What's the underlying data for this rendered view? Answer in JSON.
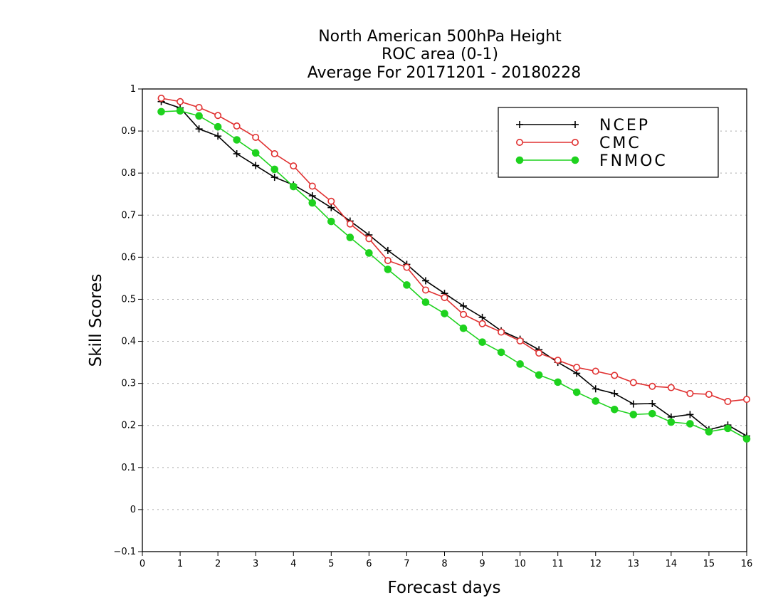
{
  "chart_data": {
    "type": "line",
    "title": [
      "North American 500hPa Height",
      "ROC area (0-1)",
      "Average For 20171201 - 20180228"
    ],
    "xlabel": "Forecast days",
    "ylabel": "Skill Scores",
    "xlim": [
      0,
      16
    ],
    "ylim": [
      -0.1,
      1
    ],
    "xticks": [
      "0",
      "1",
      "2",
      "3",
      "4",
      "5",
      "6",
      "7",
      "8",
      "9",
      "10",
      "11",
      "12",
      "13",
      "14",
      "15",
      "16"
    ],
    "yticks": [
      "−0.1",
      "0",
      "0.1",
      "0.2",
      "0.3",
      "0.4",
      "0.5",
      "0.6",
      "0.7",
      "0.8",
      "0.9",
      "1"
    ],
    "grid": "horizontal dotted",
    "legend_position": "top-right",
    "x": [
      0.5,
      1,
      1.5,
      2,
      2.5,
      3,
      3.5,
      4,
      4.5,
      5,
      5.5,
      6,
      6.5,
      7,
      7.5,
      8,
      8.5,
      9,
      9.5,
      10,
      10.5,
      11,
      11.5,
      12,
      12.5,
      13,
      13.5,
      14,
      14.5,
      15,
      15.5,
      16
    ],
    "series": [
      {
        "name": "NCEP",
        "color": "#000000",
        "marker": "plus",
        "values": [
          0.97,
          0.955,
          0.905,
          0.888,
          0.846,
          0.818,
          0.79,
          0.772,
          0.746,
          0.718,
          0.686,
          0.653,
          0.616,
          0.583,
          0.544,
          0.514,
          0.484,
          0.457,
          0.425,
          0.405,
          0.38,
          0.35,
          0.324,
          0.287,
          0.276,
          0.251,
          0.252,
          0.22,
          0.226,
          0.19,
          0.201,
          0.175
        ]
      },
      {
        "name": "CMC",
        "color": "#e03030",
        "marker": "open-circle",
        "values": [
          0.978,
          0.97,
          0.956,
          0.937,
          0.912,
          0.885,
          0.846,
          0.817,
          0.769,
          0.733,
          0.679,
          0.644,
          0.592,
          0.576,
          0.522,
          0.504,
          0.464,
          0.442,
          0.422,
          0.401,
          0.372,
          0.355,
          0.338,
          0.329,
          0.319,
          0.302,
          0.293,
          0.29,
          0.276,
          0.274,
          0.257,
          0.262
        ]
      },
      {
        "name": "FNMOC",
        "color": "#1ed21e",
        "marker": "filled-circle",
        "values": [
          0.946,
          0.948,
          0.936,
          0.91,
          0.879,
          0.848,
          0.809,
          0.768,
          0.729,
          0.685,
          0.647,
          0.61,
          0.571,
          0.534,
          0.493,
          0.466,
          0.431,
          0.398,
          0.374,
          0.346,
          0.32,
          0.303,
          0.279,
          0.258,
          0.238,
          0.226,
          0.228,
          0.208,
          0.204,
          0.185,
          0.193,
          0.168
        ]
      }
    ]
  }
}
